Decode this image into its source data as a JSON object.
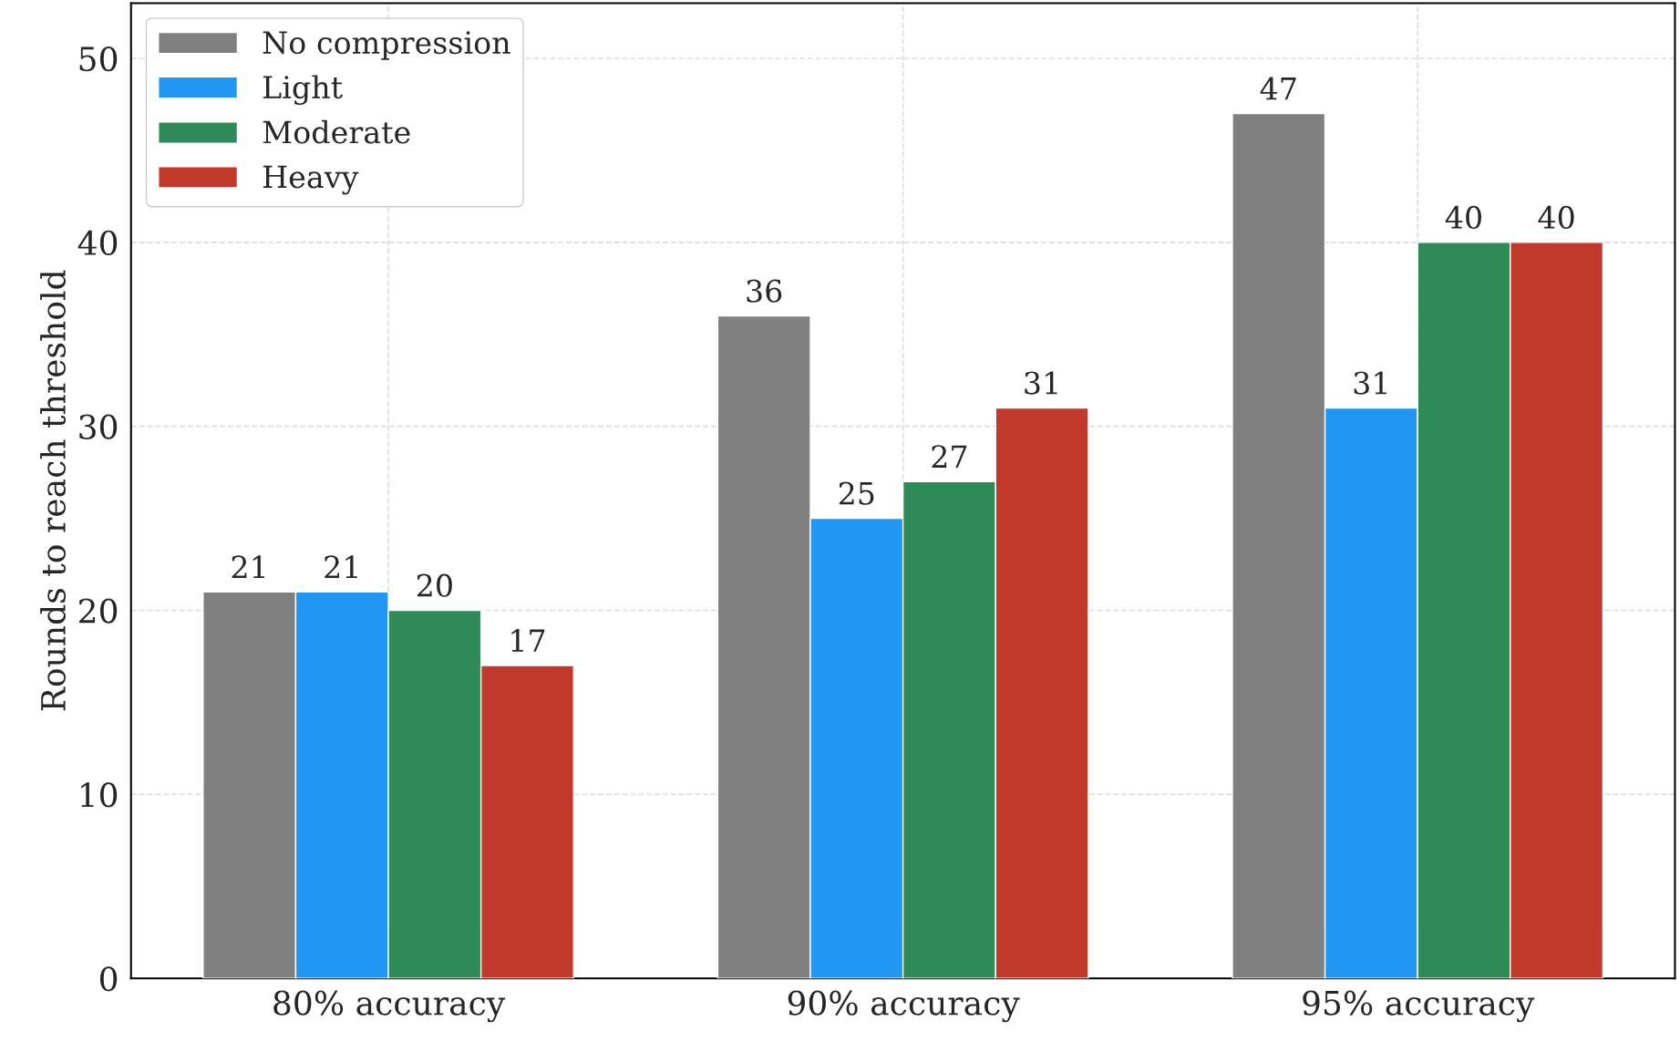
{
  "chart_data": {
    "type": "bar",
    "categories": [
      "80% accuracy",
      "90% accuracy",
      "95% accuracy"
    ],
    "ylabel": "Rounds to reach threshold",
    "series": [
      {
        "name": "No compression",
        "color": "#808080",
        "values": [
          21,
          36,
          47
        ]
      },
      {
        "name": "Light",
        "color": "#2196f3",
        "values": [
          21,
          25,
          31
        ]
      },
      {
        "name": "Moderate",
        "color": "#2e8b57",
        "values": [
          20,
          27,
          40
        ]
      },
      {
        "name": "Heavy",
        "color": "#c0392b",
        "values": [
          17,
          31,
          40
        ]
      }
    ],
    "ylim": [
      0,
      53
    ],
    "yticks": [
      0,
      10,
      20,
      30,
      40,
      50
    ],
    "grid": true,
    "legend": "top left",
    "data_labels": true
  }
}
